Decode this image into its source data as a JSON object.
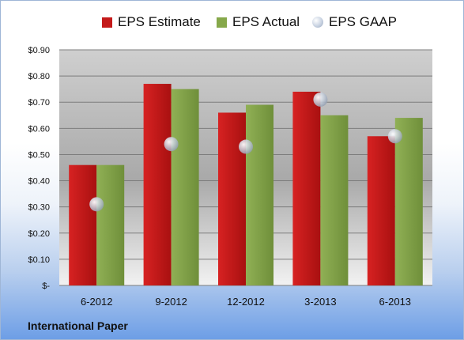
{
  "chart_data": {
    "type": "bar",
    "title": "",
    "xlabel": "",
    "ylabel": "",
    "categories": [
      "6-2012",
      "9-2012",
      "12-2012",
      "3-2013",
      "6-2013"
    ],
    "series": [
      {
        "name": "EPS Estimate",
        "kind": "bar",
        "color": "#c41a1a",
        "values": [
          0.46,
          0.77,
          0.66,
          0.74,
          0.57
        ]
      },
      {
        "name": "EPS Actual",
        "kind": "bar",
        "color": "#86a84a",
        "values": [
          0.46,
          0.75,
          0.69,
          0.65,
          0.64
        ]
      },
      {
        "name": "EPS GAAP",
        "kind": "scatter",
        "color": "#b8c4d6",
        "values": [
          0.31,
          0.54,
          0.53,
          0.71,
          0.57
        ]
      }
    ],
    "ylim": [
      0,
      0.9
    ],
    "yticks": [
      0,
      0.1,
      0.2,
      0.3,
      0.4,
      0.5,
      0.6,
      0.7,
      0.8,
      0.9
    ],
    "ytick_labels": [
      "$-",
      "$0.10",
      "$0.20",
      "$0.30",
      "$0.40",
      "$0.50",
      "$0.60",
      "$0.70",
      "$0.80",
      "$0.90"
    ],
    "grid": true,
    "legend_position": "top"
  },
  "legend": {
    "estimate_label": "EPS Estimate",
    "actual_label": "EPS Actual",
    "gaap_label": "EPS GAAP"
  },
  "source_label": "International Paper"
}
